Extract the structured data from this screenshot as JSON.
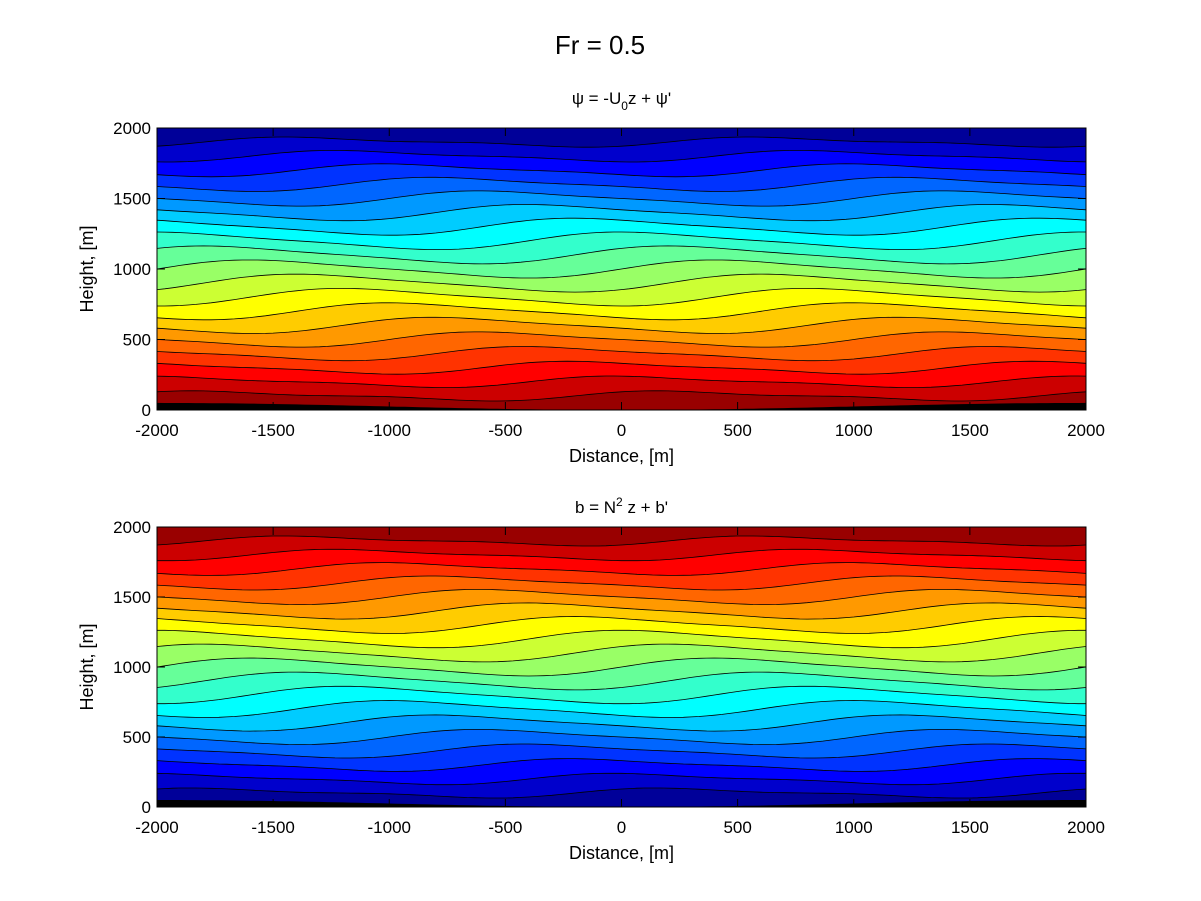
{
  "figure": {
    "suptitle": "Fr = 0.5"
  },
  "chart_data": [
    {
      "type": "contour",
      "id": "psi",
      "title": {
        "base": "ψ = -U",
        "sub": "0",
        "rest": "z + ψ'"
      },
      "xlabel": "Distance, [m]",
      "ylabel": "Height, [m]",
      "xlim": [
        -2000,
        2000
      ],
      "ylim": [
        0,
        2000
      ],
      "xticks": [
        -2000,
        -1500,
        -1000,
        -500,
        0,
        500,
        1000,
        1500,
        2000
      ],
      "yticks": [
        0,
        500,
        1000,
        1500,
        2000
      ],
      "colormap": "jet",
      "colormap_direction": "red-at-bottom-blue-at-top",
      "contour_levels": 20,
      "terrain": {
        "color": "#000000",
        "amplitude_m": 50,
        "wavelength_m": 4000,
        "crest_x_m": -2000
      },
      "wave_perturbation": {
        "wavelength_m": 2000,
        "amplitude_m": 60,
        "vertical_wavelength_m": 1000
      }
    },
    {
      "type": "contour",
      "id": "buoyancy",
      "title": {
        "base": "b = N",
        "sup": "2",
        "rest": " z + b'"
      },
      "xlabel": "Distance, [m]",
      "ylabel": "Height, [m]",
      "xlim": [
        -2000,
        2000
      ],
      "ylim": [
        0,
        2000
      ],
      "xticks": [
        -2000,
        -1500,
        -1000,
        -500,
        0,
        500,
        1000,
        1500,
        2000
      ],
      "yticks": [
        0,
        500,
        1000,
        1500,
        2000
      ],
      "colormap": "jet",
      "colormap_direction": "blue-at-bottom-red-at-top",
      "contour_levels": 20,
      "terrain": {
        "color": "#000000",
        "amplitude_m": 50,
        "wavelength_m": 4000,
        "crest_x_m": -2000
      },
      "wave_perturbation": {
        "wavelength_m": 2000,
        "amplitude_m": 60,
        "vertical_wavelength_m": 1000
      }
    }
  ]
}
